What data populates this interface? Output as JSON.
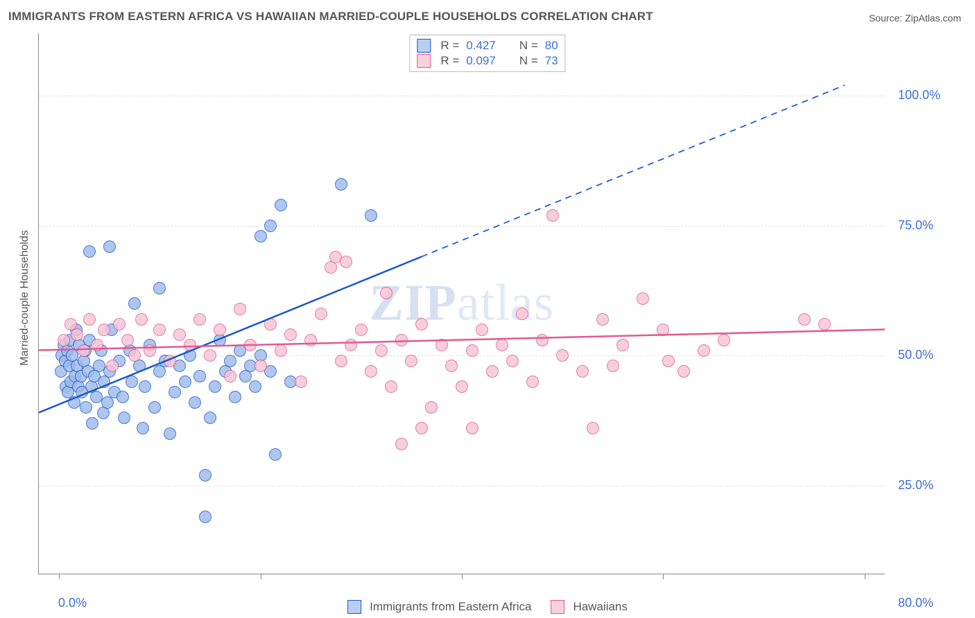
{
  "title": "IMMIGRANTS FROM EASTERN AFRICA VS HAWAIIAN MARRIED-COUPLE HOUSEHOLDS CORRELATION CHART",
  "source_prefix": "Source: ",
  "source_name": "ZipAtlas.com",
  "watermark_strong": "ZIP",
  "watermark_rest": "atlas",
  "ylabel": "Married-couple Households",
  "chart": {
    "type": "scatter",
    "background_color": "#ffffff",
    "grid_color": "#e0e0e0",
    "axis_color": "#888888",
    "tick_label_color": "#3b6fd6",
    "label_fontsize": 16,
    "tick_fontsize": 18,
    "xlim": [
      -2,
      82
    ],
    "ylim": [
      8,
      112
    ],
    "x_ticks": [
      0,
      20,
      40,
      60,
      80
    ],
    "x_tick_labels": [
      "0.0%",
      "",
      "",
      "",
      "80.0%"
    ],
    "y_gridlines": [
      25,
      50,
      75,
      100
    ],
    "y_tick_labels": [
      "25.0%",
      "50.0%",
      "75.0%",
      "100.0%"
    ],
    "marker_radius": 8,
    "marker_stroke_width": 1.3,
    "marker_fill_opacity": 0.45,
    "line_width": 2.5,
    "series": [
      {
        "id": "eastern_africa",
        "label": "Immigrants from Eastern Africa",
        "stroke": "#1b58c9",
        "fill": "#9cb9ea",
        "swatch_fill": "#b8cef2",
        "swatch_stroke": "#1b58c9",
        "R": "0.427",
        "N": "80",
        "trend": {
          "x1": -2,
          "y1": 39,
          "x2_solid": 36,
          "y2_solid": 69,
          "x2_dash": 78,
          "y2_dash": 102
        },
        "points": [
          [
            0.2,
            47
          ],
          [
            0.3,
            50
          ],
          [
            0.5,
            52
          ],
          [
            0.6,
            49
          ],
          [
            0.7,
            44
          ],
          [
            0.8,
            51
          ],
          [
            0.9,
            43
          ],
          [
            1.0,
            48
          ],
          [
            1.1,
            53
          ],
          [
            1.2,
            45
          ],
          [
            1.3,
            50
          ],
          [
            1.5,
            41
          ],
          [
            1.6,
            46
          ],
          [
            1.7,
            55
          ],
          [
            1.8,
            48
          ],
          [
            1.9,
            44
          ],
          [
            2.0,
            52
          ],
          [
            2.2,
            46
          ],
          [
            2.3,
            43
          ],
          [
            2.5,
            49
          ],
          [
            2.6,
            51
          ],
          [
            2.7,
            40
          ],
          [
            2.9,
            47
          ],
          [
            3.0,
            53
          ],
          [
            3.2,
            44
          ],
          [
            3.3,
            37
          ],
          [
            3.5,
            46
          ],
          [
            3.7,
            42
          ],
          [
            3.0,
            70
          ],
          [
            4.0,
            48
          ],
          [
            4.2,
            51
          ],
          [
            4.4,
            39
          ],
          [
            4.5,
            45
          ],
          [
            4.8,
            41
          ],
          [
            5.0,
            47
          ],
          [
            5.2,
            55
          ],
          [
            5.5,
            43
          ],
          [
            5.0,
            71
          ],
          [
            6.0,
            49
          ],
          [
            6.3,
            42
          ],
          [
            6.5,
            38
          ],
          [
            7.0,
            51
          ],
          [
            7.2,
            45
          ],
          [
            7.5,
            60
          ],
          [
            8.0,
            48
          ],
          [
            8.3,
            36
          ],
          [
            8.5,
            44
          ],
          [
            9.0,
            52
          ],
          [
            9.5,
            40
          ],
          [
            10.0,
            47
          ],
          [
            10.5,
            49
          ],
          [
            11.0,
            35
          ],
          [
            11.5,
            43
          ],
          [
            12.0,
            48
          ],
          [
            12.5,
            45
          ],
          [
            13.0,
            50
          ],
          [
            13.5,
            41
          ],
          [
            14.0,
            46
          ],
          [
            14.5,
            19
          ],
          [
            15.0,
            38
          ],
          [
            15.5,
            44
          ],
          [
            16.0,
            53
          ],
          [
            10.0,
            63
          ],
          [
            16.5,
            47
          ],
          [
            17.0,
            49
          ],
          [
            14.5,
            27
          ],
          [
            17.5,
            42
          ],
          [
            18.0,
            51
          ],
          [
            18.5,
            46
          ],
          [
            19.0,
            48
          ],
          [
            19.5,
            44
          ],
          [
            20.0,
            50
          ],
          [
            20.0,
            73
          ],
          [
            21.0,
            47
          ],
          [
            21.0,
            75
          ],
          [
            22.0,
            79
          ],
          [
            21.5,
            31
          ],
          [
            23.0,
            45
          ],
          [
            28.0,
            83
          ],
          [
            31.0,
            77
          ]
        ]
      },
      {
        "id": "hawaiians",
        "label": "Hawaiians",
        "stroke": "#e05a8e",
        "fill": "#f7c3d4",
        "swatch_fill": "#f9d1de",
        "swatch_stroke": "#e05a8e",
        "R": "0.097",
        "N": "73",
        "trend": {
          "x1": -2,
          "y1": 51,
          "x2_solid": 82,
          "y2_solid": 55,
          "x2_dash": 82,
          "y2_dash": 55
        },
        "points": [
          [
            0.5,
            53
          ],
          [
            1.2,
            56
          ],
          [
            1.8,
            54
          ],
          [
            2.5,
            51
          ],
          [
            3.0,
            57
          ],
          [
            3.8,
            52
          ],
          [
            4.5,
            55
          ],
          [
            5.3,
            48
          ],
          [
            6.0,
            56
          ],
          [
            6.8,
            53
          ],
          [
            7.5,
            50
          ],
          [
            8.2,
            57
          ],
          [
            9.0,
            51
          ],
          [
            10.0,
            55
          ],
          [
            11.0,
            49
          ],
          [
            12.0,
            54
          ],
          [
            13.0,
            52
          ],
          [
            14.0,
            57
          ],
          [
            15.0,
            50
          ],
          [
            16.0,
            55
          ],
          [
            17.0,
            46
          ],
          [
            18.0,
            59
          ],
          [
            19.0,
            52
          ],
          [
            20.0,
            48
          ],
          [
            21.0,
            56
          ],
          [
            22.0,
            51
          ],
          [
            23.0,
            54
          ],
          [
            24.0,
            45
          ],
          [
            25.0,
            53
          ],
          [
            26.0,
            58
          ],
          [
            27.0,
            67
          ],
          [
            27.5,
            69
          ],
          [
            28.0,
            49
          ],
          [
            29.0,
            52
          ],
          [
            28.5,
            68
          ],
          [
            30.0,
            55
          ],
          [
            31.0,
            47
          ],
          [
            32.0,
            51
          ],
          [
            32.5,
            62
          ],
          [
            33.0,
            44
          ],
          [
            34.0,
            53
          ],
          [
            35.0,
            49
          ],
          [
            36.0,
            56
          ],
          [
            37.0,
            40
          ],
          [
            38.0,
            52
          ],
          [
            39.0,
            48
          ],
          [
            34.0,
            33
          ],
          [
            40.0,
            44
          ],
          [
            41.0,
            51
          ],
          [
            42.0,
            55
          ],
          [
            43.0,
            47
          ],
          [
            36.0,
            36
          ],
          [
            44.0,
            52
          ],
          [
            45.0,
            49
          ],
          [
            46.0,
            58
          ],
          [
            47.0,
            45
          ],
          [
            48.0,
            53
          ],
          [
            41.0,
            36
          ],
          [
            50.0,
            50
          ],
          [
            49.0,
            77
          ],
          [
            52.0,
            47
          ],
          [
            54.0,
            57
          ],
          [
            53.0,
            36
          ],
          [
            55.0,
            48
          ],
          [
            56.0,
            52
          ],
          [
            58.0,
            61
          ],
          [
            60.0,
            55
          ],
          [
            60.5,
            49
          ],
          [
            62.0,
            47
          ],
          [
            64.0,
            51
          ],
          [
            66.0,
            53
          ],
          [
            74.0,
            57
          ],
          [
            76.0,
            56
          ]
        ]
      }
    ]
  },
  "legend_top": {
    "r_label": "R = ",
    "n_label": "N = "
  }
}
